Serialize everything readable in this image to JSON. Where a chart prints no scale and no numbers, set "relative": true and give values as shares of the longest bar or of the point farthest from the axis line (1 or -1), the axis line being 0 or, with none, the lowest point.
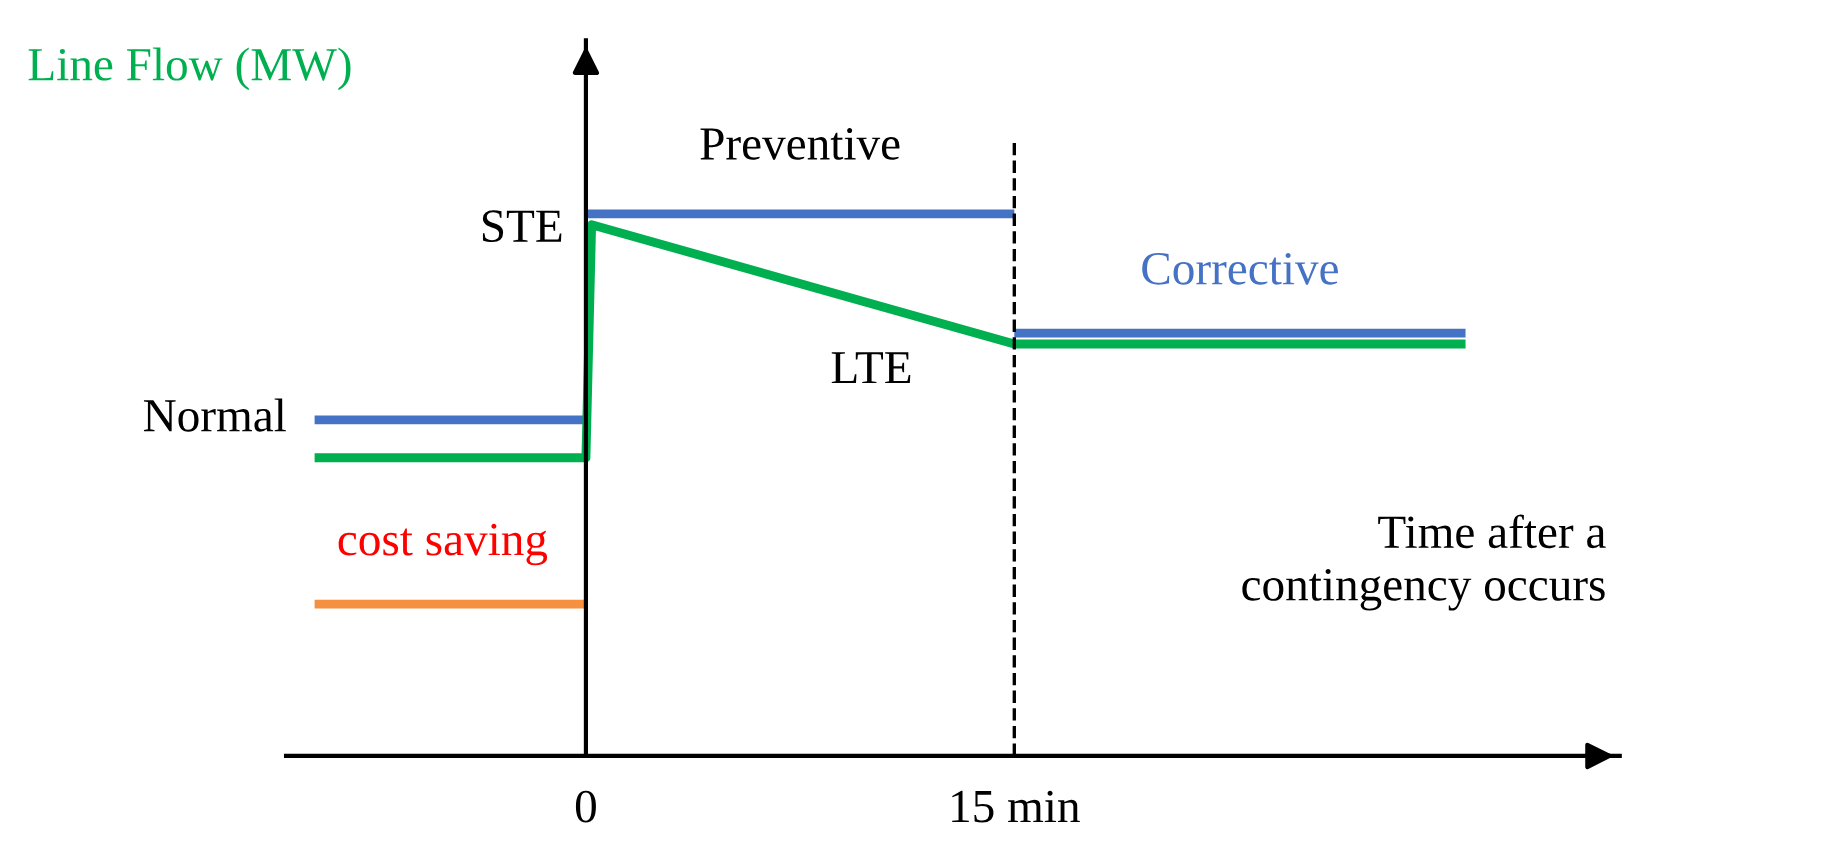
{
  "chart_data": {
    "type": "line",
    "relative": true,
    "xlabel": "Time after a\ncontingency occurs",
    "ylabel": "Line Flow (MW)",
    "xlim": [
      -10.5,
      36.2
    ],
    "xticks": [
      0,
      {
        "value": 15,
        "label": "15 min"
      }
    ],
    "grid": false,
    "marker": "none",
    "line_style": "solid",
    "series": [
      {
        "color": "#4472c4",
        "x": [
          -9.5,
          0
        ],
        "values": [
          0.62,
          0.62
        ]
      },
      {
        "color": "#4472c4",
        "x": [
          0,
          15
        ],
        "values": [
          1.0,
          1.0
        ]
      },
      {
        "name": "Corrective",
        "color": "#4472c4",
        "x": [
          15,
          30.8
        ],
        "values": [
          0.78,
          0.78
        ]
      },
      {
        "color": "#f4903f",
        "x": [
          -9.5,
          0
        ],
        "values": [
          0.28,
          0.28
        ]
      },
      {
        "color": "#00b050",
        "x": [
          -9.5,
          0,
          0.2,
          15,
          30.8
        ],
        "values": [
          0.55,
          0.55,
          0.98,
          0.76,
          0.76
        ]
      }
    ],
    "ref_lines": [
      {
        "axis": "x",
        "value": 15,
        "color": "#000000",
        "line_style": "dashed"
      }
    ],
    "annotations": [
      {
        "text": "Normal",
        "x": -9.5,
        "y": 0.62
      },
      {
        "text": "cost saving",
        "x": -9.5,
        "y": 0.28
      },
      {
        "text": "STE",
        "x": 0,
        "y": 0.98
      },
      {
        "text": "Preventive",
        "x": 7.5,
        "y": 1.0
      },
      {
        "text": "LTE",
        "x": 10,
        "y": 0.82
      }
    ]
  }
}
